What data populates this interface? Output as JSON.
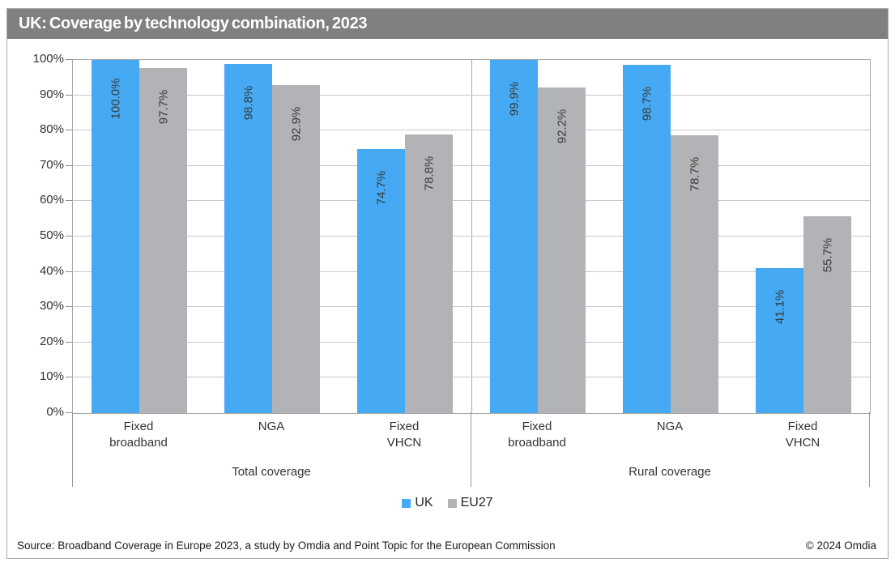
{
  "title": "UK: Coverage by technology combination, 2023",
  "colors": {
    "titlebar_bg": "#808080",
    "uk_bar": "#45AAF3",
    "eu27_bar": "#B2B3B6",
    "gridline": "#C8C8C8",
    "plot_border": "#A8A8A8",
    "label_text": "#3A3A3A"
  },
  "legend": {
    "uk_label": "UK",
    "eu27_label": "EU27"
  },
  "footer": {
    "source": "Source: Broadband Coverage in Europe 2023, a study by Omdia and Point Topic for the European Commission",
    "copyright": "© 2024 Omdia"
  },
  "chart_data": {
    "type": "bar",
    "title": "UK: Coverage by technology combination, 2023",
    "ylabel": "",
    "xlabel": "",
    "ylim": [
      0,
      100
    ],
    "grid": true,
    "legend_position": "bottom",
    "yticks": [
      "0%",
      "10%",
      "20%",
      "30%",
      "40%",
      "50%",
      "60%",
      "70%",
      "80%",
      "90%",
      "100%"
    ],
    "groups": [
      {
        "label": "Total coverage"
      },
      {
        "label": "Rural coverage"
      }
    ],
    "categories": [
      [
        "Fixed",
        "broadband"
      ],
      [
        "NGA"
      ],
      [
        "Fixed",
        "VHCN"
      ],
      [
        "Fixed",
        "broadband"
      ],
      [
        "NGA"
      ],
      [
        "Fixed",
        "VHCN"
      ]
    ],
    "series": [
      {
        "name": "UK",
        "color": "#45AAF3",
        "values": [
          100.0,
          98.8,
          74.7,
          99.9,
          98.7,
          41.1
        ],
        "data_labels": [
          "100.0%",
          "98.8%",
          "74.7%",
          "99.9%",
          "98.7%",
          "41.1%"
        ]
      },
      {
        "name": "EU27",
        "color": "#B2B3B6",
        "values": [
          97.7,
          92.9,
          78.8,
          92.2,
          78.7,
          55.7
        ],
        "data_labels": [
          "97.7%",
          "92.9%",
          "78.8%",
          "92.2%",
          "78.7%",
          "55.7%"
        ]
      }
    ]
  }
}
